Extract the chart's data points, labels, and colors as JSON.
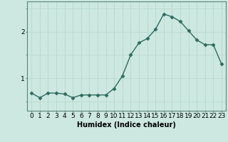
{
  "x": [
    0,
    1,
    2,
    3,
    4,
    5,
    6,
    7,
    8,
    9,
    10,
    11,
    12,
    13,
    14,
    15,
    16,
    17,
    18,
    19,
    20,
    21,
    22,
    23
  ],
  "y": [
    0.68,
    0.58,
    0.68,
    0.68,
    0.66,
    0.58,
    0.64,
    0.64,
    0.64,
    0.64,
    0.78,
    1.05,
    1.5,
    1.76,
    1.85,
    2.05,
    2.38,
    2.32,
    2.22,
    2.02,
    1.82,
    1.72,
    1.72,
    1.3
  ],
  "line_color": "#2d6b5e",
  "marker": "D",
  "marker_size": 2.5,
  "linewidth": 1.0,
  "xlabel": "Humidex (Indice chaleur)",
  "xlabel_fontsize": 7,
  "yticks": [
    1,
    2
  ],
  "ylim": [
    0.3,
    2.65
  ],
  "xlim": [
    -0.5,
    23.5
  ],
  "bg_color": "#cce8e0",
  "grid_color": "#b8d8d0",
  "tick_fontsize": 6.5,
  "spine_color": "#5a8878"
}
